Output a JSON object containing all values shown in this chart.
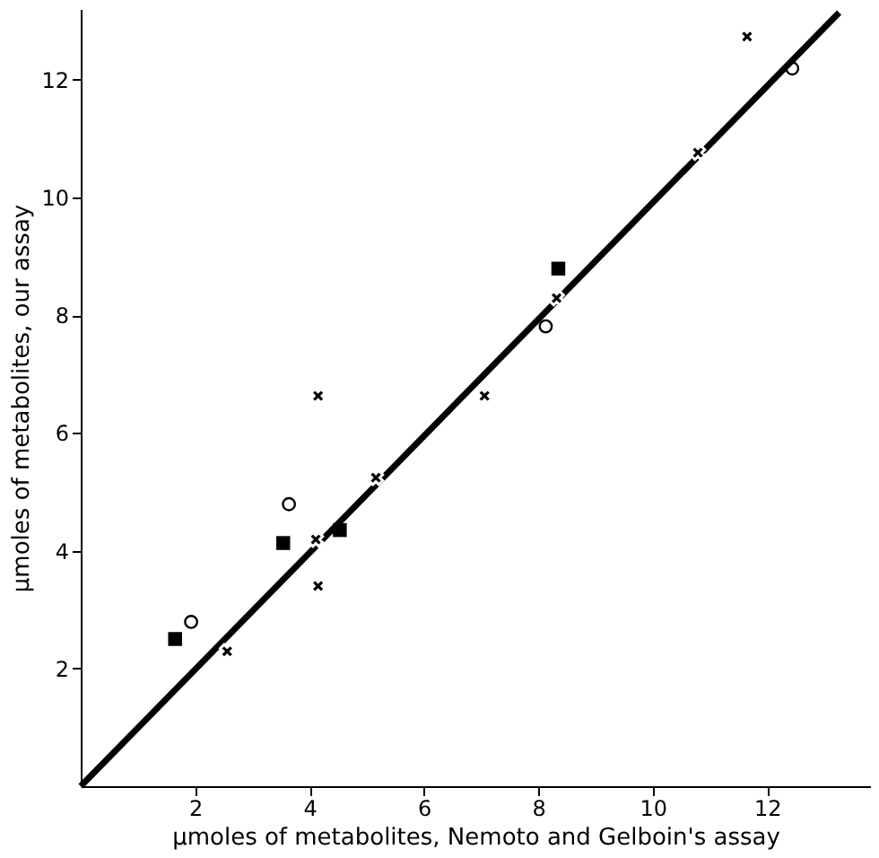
{
  "chart_data": {
    "type": "scatter",
    "xlabel": "µmoles of metabolites,      Nemoto and Gelboin's assay",
    "ylabel": "µmoles of metabolites,      our assay",
    "xlim": [
      0,
      13.8
    ],
    "ylim": [
      0,
      13.2
    ],
    "xticks": [
      2,
      4,
      6,
      8,
      10,
      12
    ],
    "yticks": [
      2,
      4,
      6,
      8,
      10,
      12
    ],
    "grid": false,
    "legend": false,
    "series": [
      {
        "marker": "square",
        "color": "#000000",
        "x": [
          1.65,
          3.54,
          4.53,
          8.35
        ],
        "values": [
          2.5,
          4.13,
          4.35,
          8.79
        ]
      },
      {
        "marker": "circle",
        "color": "#000000",
        "x": [
          1.93,
          3.64,
          8.13,
          12.44
        ],
        "values": [
          2.79,
          4.79,
          7.81,
          12.19
        ]
      },
      {
        "marker": "cross",
        "color": "#000000",
        "x": [
          2.56,
          4.11,
          4.15,
          5.16,
          4.15,
          7.06,
          8.32,
          10.79,
          11.65
        ],
        "values": [
          2.29,
          4.19,
          3.4,
          5.24,
          6.63,
          6.63,
          8.29,
          10.76,
          12.73
        ]
      },
      {
        "type": "line",
        "line_style": "solid",
        "color": "#000000",
        "x": [
          0,
          13.26
        ],
        "values": [
          0,
          13.14
        ]
      }
    ]
  }
}
